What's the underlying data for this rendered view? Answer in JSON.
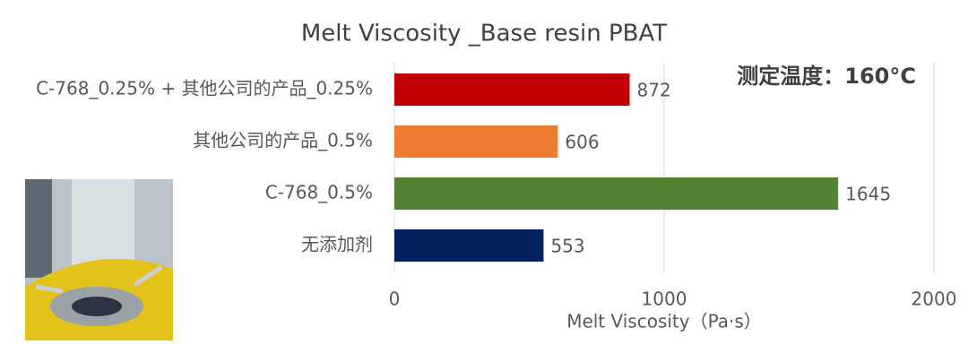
{
  "chart_data": {
    "type": "hbar",
    "title": "Melt Viscosity _Base resin PBAT",
    "categories": [
      "C-768_0.25% + 其他公司的产品_0.25%",
      "其他公司的产品_0.5%",
      "C-768_0.5%",
      "无添加剂"
    ],
    "values": [
      872,
      606,
      1645,
      553
    ],
    "colors": [
      "#c00000",
      "#ed7d31",
      "#548235",
      "#002060"
    ],
    "xlim": [
      0,
      2000
    ],
    "xticks": [
      0,
      1000,
      2000
    ],
    "grid": true,
    "xlabel": "Melt Viscosity（Pa·s）",
    "annotation": "测定温度：160°C"
  }
}
